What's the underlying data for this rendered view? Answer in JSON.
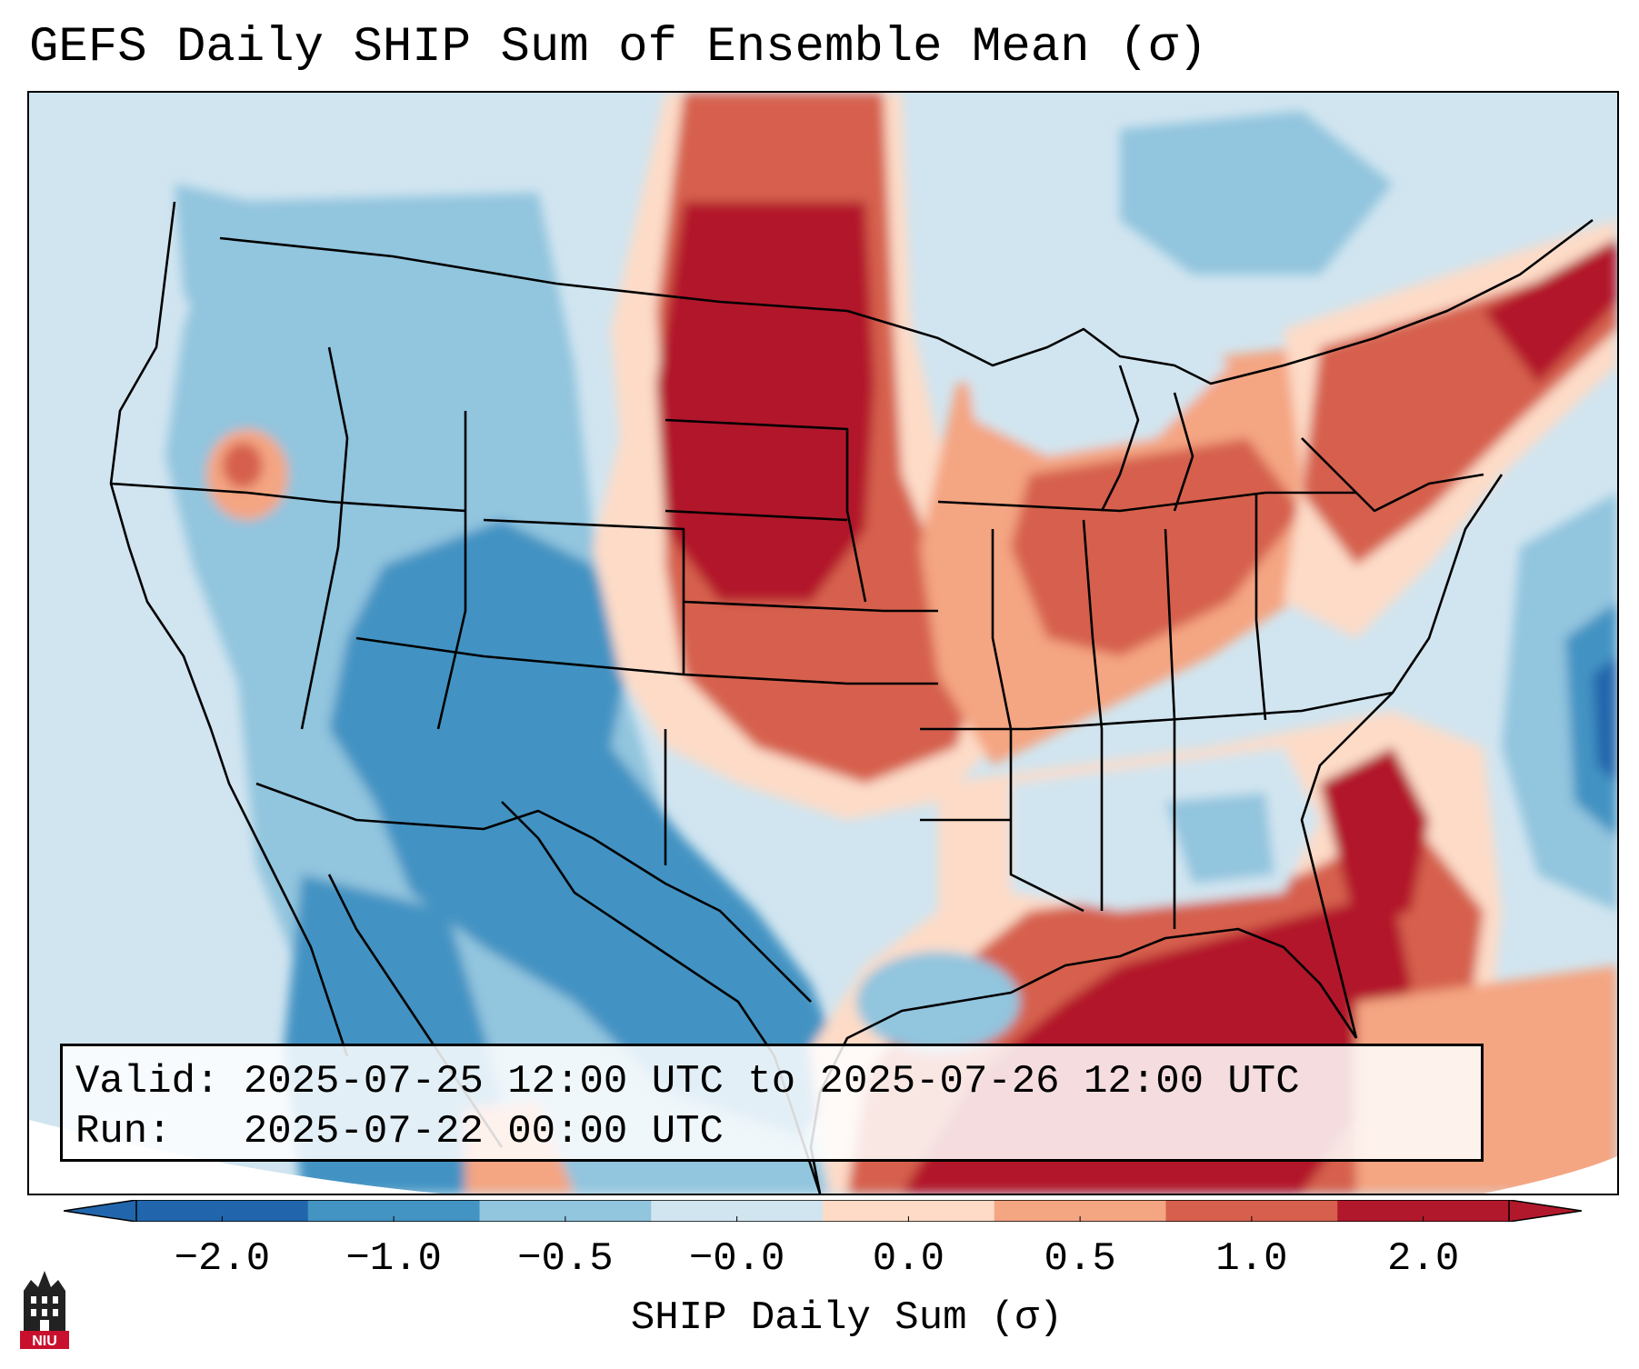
{
  "title": "GEFS Daily SHIP Sum of Ensemble Mean (σ)",
  "info": {
    "valid_line": "Valid: 2025-07-25 12:00 UTC to 2025-07-26 12:00 UTC",
    "run_line": "Run:   2025-07-22 00:00 UTC"
  },
  "colorbar": {
    "label": "SHIP Daily Sum (σ)",
    "ticks": [
      "−2.0",
      "−1.0",
      "−0.5",
      "−0.0",
      "0.0",
      "0.5",
      "1.0",
      "2.0"
    ],
    "colors": [
      "#2166ac",
      "#4393c3",
      "#92c5de",
      "#d1e5f0",
      "#fddbc7",
      "#f4a582",
      "#d6604d",
      "#b2182b"
    ]
  },
  "logo": {
    "text": "NIU",
    "color": "#c8102e"
  }
}
